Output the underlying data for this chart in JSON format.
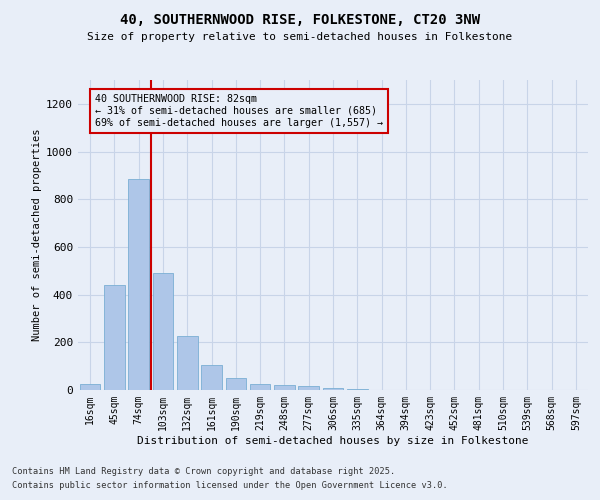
{
  "title_line1": "40, SOUTHERNWOOD RISE, FOLKESTONE, CT20 3NW",
  "title_line2": "Size of property relative to semi-detached houses in Folkestone",
  "xlabel": "Distribution of semi-detached houses by size in Folkestone",
  "ylabel": "Number of semi-detached properties",
  "categories": [
    "16sqm",
    "45sqm",
    "74sqm",
    "103sqm",
    "132sqm",
    "161sqm",
    "190sqm",
    "219sqm",
    "248sqm",
    "277sqm",
    "306sqm",
    "335sqm",
    "364sqm",
    "394sqm",
    "423sqm",
    "452sqm",
    "481sqm",
    "510sqm",
    "539sqm",
    "568sqm",
    "597sqm"
  ],
  "values": [
    25,
    440,
    885,
    490,
    225,
    105,
    50,
    25,
    20,
    15,
    8,
    5,
    2,
    1,
    1,
    0,
    0,
    0,
    0,
    0,
    0
  ],
  "bar_color": "#aec6e8",
  "bar_edge_color": "#7aafd4",
  "grid_color": "#c8d4e8",
  "background_color": "#e8eef8",
  "vline_x": 2.5,
  "vline_color": "#cc0000",
  "annotation_text": "40 SOUTHERNWOOD RISE: 82sqm\n← 31% of semi-detached houses are smaller (685)\n69% of semi-detached houses are larger (1,557) →",
  "annotation_box_color": "#cc0000",
  "ylim": [
    0,
    1300
  ],
  "yticks": [
    0,
    200,
    400,
    600,
    800,
    1000,
    1200
  ],
  "footnote1": "Contains HM Land Registry data © Crown copyright and database right 2025.",
  "footnote2": "Contains public sector information licensed under the Open Government Licence v3.0."
}
